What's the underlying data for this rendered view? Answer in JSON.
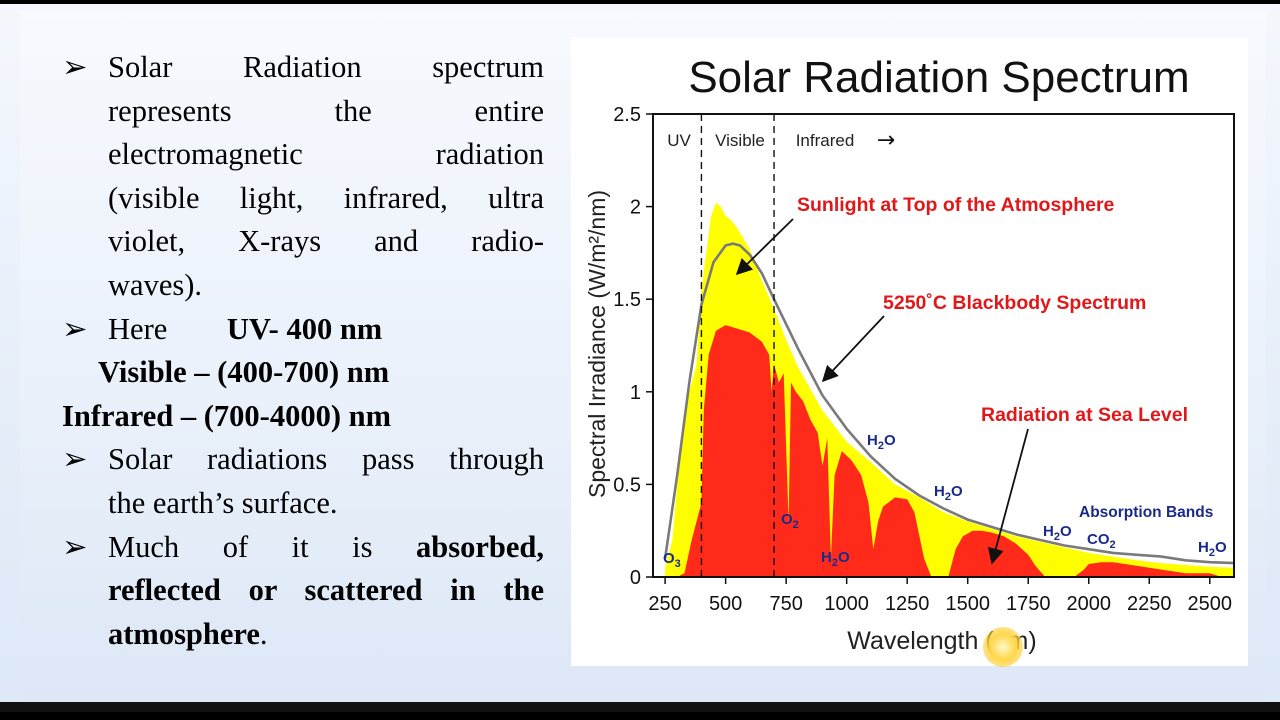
{
  "text": {
    "bullet_glyph": "➢",
    "b1_lines": [
      "Solar Radiation spectrum",
      "represents the entire",
      "electromagnetic radiation",
      "(visible light, infrared, ultra",
      "violet, X-rays and radio-",
      "waves)."
    ],
    "b2_here": "Here",
    "b2_uv": "UV- 400 nm",
    "b2_visible": "Visible – (400-700) nm",
    "b2_infrared": "Infrared – (700-4000) nm",
    "b3_lines": [
      "Solar radiations pass through",
      "the earth’s surface."
    ],
    "b4_line1_normal": "Much of it is ",
    "b4_line1_bold": "absorbed,",
    "b4_line2_bold": "reflected or scattered in the",
    "b4_line3_bold": "atmosphere",
    "b4_line3_end": "."
  },
  "chart_data": {
    "type": "area",
    "title": "Solar Radiation Spectrum",
    "xlabel": "Wavelength (nm)",
    "ylabel": "Spectral Irradiance (W/m²/nm)",
    "xlim": [
      200,
      2600
    ],
    "ylim": [
      0,
      2.5
    ],
    "xticks": [
      250,
      500,
      750,
      1000,
      1250,
      1500,
      1750,
      2000,
      2250,
      2500
    ],
    "yticks": [
      0,
      0.5,
      1,
      1.5,
      2,
      2.5
    ],
    "ytick_labels": [
      "0",
      "0.5",
      "1",
      "1.5",
      "2",
      "2.5"
    ],
    "region_dividers": [
      400,
      700
    ],
    "regions": [
      "UV",
      "Visible",
      "Infrared"
    ],
    "infrared_arrow": "→",
    "series": [
      {
        "name": "Sunlight at Top of the Atmosphere",
        "color": "#ffff00",
        "x": [
          250,
          280,
          300,
          320,
          340,
          360,
          380,
          400,
          420,
          440,
          460,
          480,
          500,
          520,
          550,
          600,
          650,
          700,
          750,
          800,
          900,
          1000,
          1100,
          1200,
          1300,
          1400,
          1500,
          1600,
          1700,
          1800,
          1900,
          2000,
          2100,
          2200,
          2300,
          2400,
          2500,
          2600
        ],
        "y": [
          0.05,
          0.2,
          0.5,
          0.75,
          0.95,
          1.05,
          1.15,
          1.55,
          1.75,
          1.95,
          2.02,
          2.0,
          1.95,
          1.93,
          1.88,
          1.77,
          1.6,
          1.45,
          1.28,
          1.13,
          0.9,
          0.73,
          0.62,
          0.5,
          0.43,
          0.35,
          0.3,
          0.26,
          0.22,
          0.19,
          0.16,
          0.13,
          0.11,
          0.09,
          0.075,
          0.065,
          0.055,
          0.05
        ]
      },
      {
        "name": "Radiation at Sea Level",
        "color": "#ff2a1a",
        "x": [
          300,
          330,
          360,
          400,
          410,
          430,
          460,
          500,
          550,
          600,
          650,
          680,
          690,
          700,
          720,
          740,
          760,
          770,
          790,
          820,
          850,
          880,
          900,
          920,
          935,
          950,
          980,
          1020,
          1060,
          1090,
          1110,
          1130,
          1150,
          1200,
          1250,
          1280,
          1320,
          1350,
          1380,
          1420,
          1450,
          1480,
          1520,
          1560,
          1600,
          1650,
          1700,
          1750,
          1780,
          1820,
          1880,
          1940,
          1980,
          2000,
          2050,
          2100,
          2150,
          2200,
          2250,
          2300,
          2350,
          2400,
          2450,
          2500,
          2550,
          2600
        ],
        "y": [
          0,
          0.02,
          0.2,
          0.4,
          0.9,
          1.2,
          1.33,
          1.36,
          1.34,
          1.32,
          1.27,
          1.2,
          1.0,
          1.15,
          1.05,
          1.1,
          0.3,
          1.05,
          1.0,
          0.95,
          0.85,
          0.78,
          0.6,
          0.75,
          0.1,
          0.55,
          0.68,
          0.63,
          0.55,
          0.4,
          0.15,
          0.3,
          0.38,
          0.43,
          0.42,
          0.35,
          0.1,
          0.0,
          0.0,
          0.0,
          0.15,
          0.22,
          0.25,
          0.25,
          0.24,
          0.22,
          0.18,
          0.12,
          0.06,
          0.0,
          0.0,
          0.0,
          0.04,
          0.07,
          0.08,
          0.08,
          0.07,
          0.06,
          0.05,
          0.04,
          0.03,
          0.02,
          0.02,
          0.02,
          0.0,
          0.0
        ]
      },
      {
        "name": "5250˚C Blackbody Spectrum",
        "color": "#7a7a7a",
        "x": [
          250,
          300,
          350,
          400,
          450,
          500,
          530,
          560,
          600,
          650,
          700,
          800,
          900,
          1000,
          1100,
          1200,
          1300,
          1400,
          1500,
          1600,
          1700,
          1800,
          1900,
          2000,
          2100,
          2200,
          2300,
          2400,
          2500,
          2600
        ],
        "y": [
          0.1,
          0.55,
          1.05,
          1.47,
          1.7,
          1.79,
          1.8,
          1.79,
          1.74,
          1.64,
          1.5,
          1.23,
          0.98,
          0.8,
          0.65,
          0.53,
          0.44,
          0.37,
          0.31,
          0.27,
          0.23,
          0.2,
          0.17,
          0.15,
          0.13,
          0.12,
          0.11,
          0.09,
          0.08,
          0.075
        ]
      }
    ],
    "annotations": [
      {
        "text": "Sunlight at Top of the Atmosphere",
        "color": "#e0181a"
      },
      {
        "text": "5250˚C Blackbody Spectrum",
        "color": "#e0181a"
      },
      {
        "text": "Radiation at Sea Level",
        "color": "#e0181a"
      },
      {
        "text": "Absorption Bands",
        "color": "#1a2a8a"
      }
    ],
    "absorption_labels": [
      "O3",
      "O2",
      "H2O",
      "H2O",
      "H2O",
      "H2O",
      "CO2",
      "H2O"
    ],
    "label_color": "#1a2a8a"
  }
}
